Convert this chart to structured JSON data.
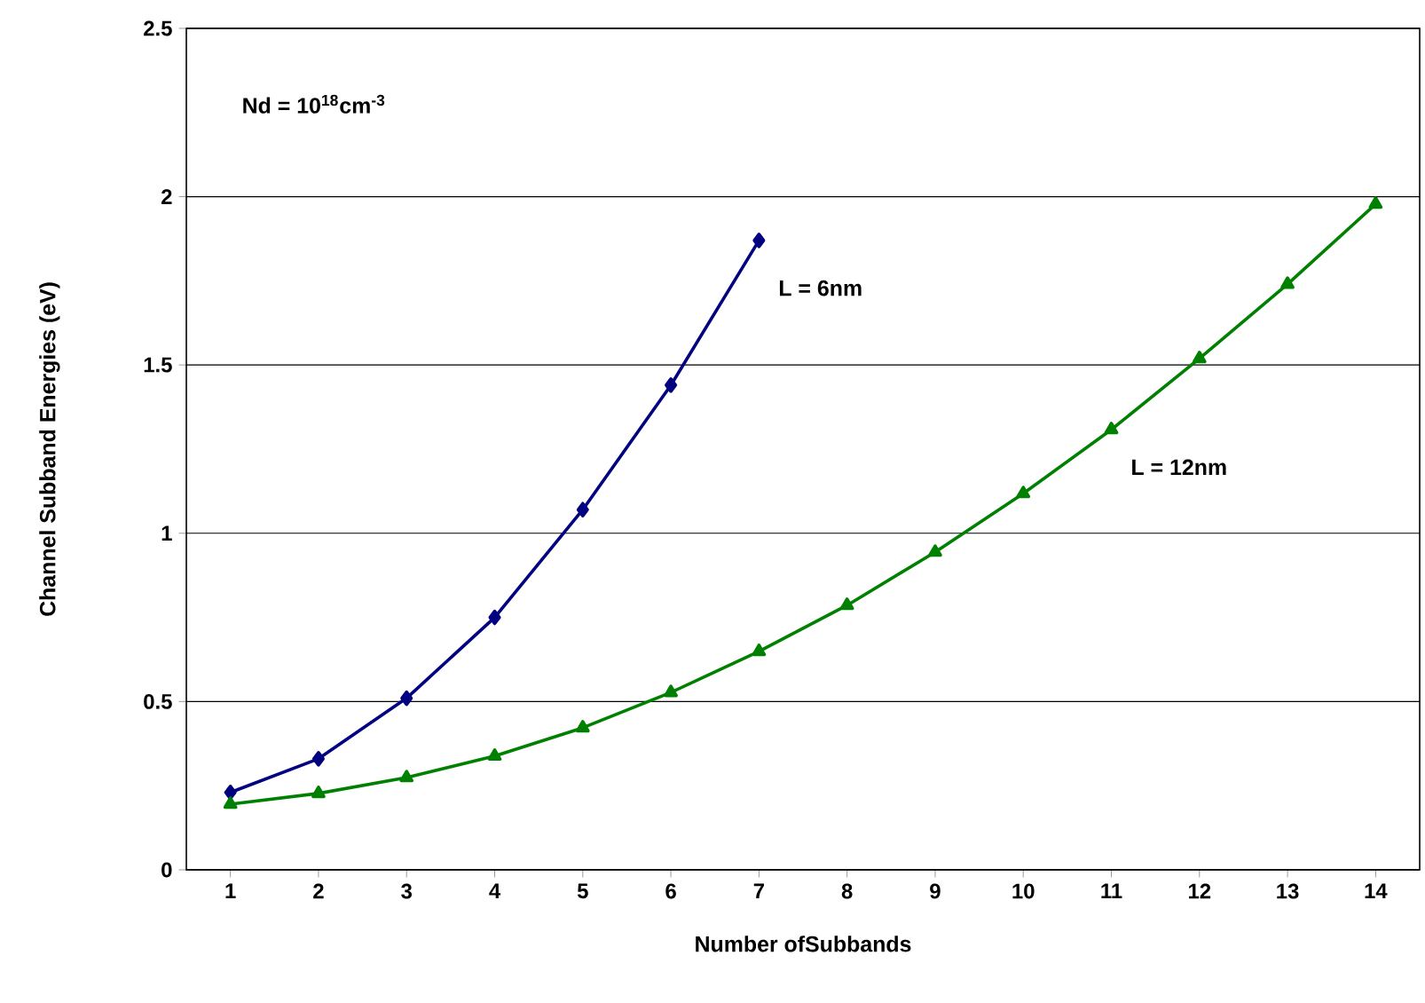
{
  "chart_data": {
    "type": "line",
    "categories": [
      "1",
      "2",
      "3",
      "4",
      "5",
      "6",
      "7",
      "8",
      "9",
      "10",
      "11",
      "12",
      "13",
      "14"
    ],
    "series": [
      {
        "name": "L = 6nm",
        "color": "#000080",
        "marker": "diamond",
        "values": [
          0.23,
          0.33,
          0.51,
          0.75,
          1.07,
          1.44,
          1.87,
          null,
          null,
          null,
          null,
          null,
          null,
          null
        ]
      },
      {
        "name": "L = 12nm",
        "color": "#008000",
        "marker": "triangle",
        "values": [
          0.195,
          0.227,
          0.274,
          0.338,
          0.422,
          0.527,
          0.649,
          0.786,
          0.944,
          1.118,
          1.308,
          1.519,
          1.74,
          1.978
        ]
      }
    ],
    "xlabel": "Number ofSubbands",
    "ylabel": "Channel Subband Energies (eV)",
    "annotations": [
      "Nd = 10$^{18}$cm$^{-3}$"
    ],
    "ylim": [
      0,
      2.5
    ],
    "yticks": [
      0,
      0.5,
      1,
      1.5,
      2,
      2.5
    ],
    "grid": "y"
  }
}
